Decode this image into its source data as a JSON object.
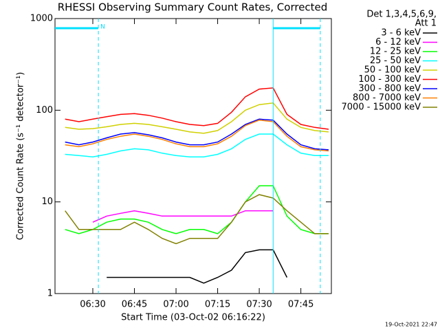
{
  "chart_data": {
    "type": "line",
    "title": "RHESSI Observing Summary Count Rates, Corrected",
    "x_label": "Start Time (03-Oct-02 06:16:22)",
    "y_label": "Corrected Count Rate (s⁻¹ detector⁻¹)",
    "legend_header": [
      "Det 1,3,4,5,6,9,",
      "Att 1"
    ],
    "timestamp": "19-Oct-2021 22:47",
    "annotation": {
      "text": "N",
      "x": "06:32"
    },
    "intervals": [
      [
        "06:16:22",
        "06:32"
      ],
      [
        "07:35",
        "07:52"
      ]
    ],
    "vlines": [
      "06:32",
      "07:35",
      "07:52"
    ],
    "log_y": true,
    "xlim": [
      "06:16:22",
      "07:56"
    ],
    "xticks": [
      "06:30",
      "06:45",
      "07:00",
      "07:15",
      "07:30",
      "07:45"
    ],
    "ylim": [
      1,
      1000
    ],
    "yticks": [
      1,
      10,
      100,
      1000
    ],
    "x": [
      "06:20",
      "06:25",
      "06:30",
      "06:35",
      "06:40",
      "06:45",
      "06:50",
      "06:55",
      "07:00",
      "07:05",
      "07:10",
      "07:15",
      "07:20",
      "07:25",
      "07:30",
      "07:35",
      "07:40",
      "07:45",
      "07:50",
      "07:55"
    ],
    "series": [
      {
        "name": "3 - 6 keV",
        "color": "#000000",
        "values": [
          null,
          null,
          null,
          1.5,
          1.5,
          1.5,
          1.5,
          1.5,
          1.5,
          1.5,
          1.3,
          1.5,
          1.8,
          2.8,
          3,
          3,
          1.5,
          null,
          null,
          null
        ]
      },
      {
        "name": "6 - 12 keV",
        "color": "#ff00ff",
        "values": [
          null,
          null,
          6,
          7,
          7.5,
          8,
          7.5,
          7,
          7,
          7,
          7,
          7,
          7,
          8,
          8,
          8,
          null,
          null,
          null,
          null
        ]
      },
      {
        "name": "12 - 25 keV",
        "color": "#00ff00",
        "values": [
          5,
          4.5,
          5,
          6,
          6.5,
          6.5,
          6,
          5,
          4.5,
          5,
          5,
          4.5,
          6,
          10,
          15,
          15,
          7,
          5,
          4.5,
          4.5
        ]
      },
      {
        "name": "25 - 50 keV",
        "color": "#00ffff",
        "values": [
          33,
          32,
          31,
          33,
          36,
          38,
          37,
          34,
          32,
          31,
          31,
          33,
          38,
          48,
          55,
          55,
          42,
          34,
          32,
          32
        ]
      },
      {
        "name": "50 - 100 keV",
        "color": "#d0d000",
        "values": [
          65,
          62,
          63,
          66,
          70,
          72,
          70,
          66,
          62,
          58,
          56,
          60,
          75,
          100,
          115,
          120,
          80,
          65,
          60,
          58
        ]
      },
      {
        "name": "100 - 300 keV",
        "color": "#ff0000",
        "values": [
          80,
          75,
          80,
          85,
          90,
          92,
          88,
          82,
          75,
          70,
          68,
          72,
          95,
          140,
          170,
          175,
          90,
          70,
          65,
          62
        ]
      },
      {
        "name": "300 - 800 keV",
        "color": "#0000ff",
        "values": [
          45,
          42,
          45,
          50,
          55,
          57,
          54,
          50,
          45,
          42,
          42,
          45,
          55,
          70,
          80,
          78,
          55,
          42,
          38,
          37
        ]
      },
      {
        "name": "800 - 7000 keV",
        "color": "#ff8000",
        "values": [
          42,
          40,
          43,
          48,
          52,
          55,
          52,
          48,
          43,
          40,
          40,
          43,
          52,
          68,
          78,
          75,
          52,
          40,
          37,
          36
        ]
      },
      {
        "name": "7000 - 15000 keV",
        "color": "#808000",
        "values": [
          8,
          5,
          5,
          5,
          5,
          6,
          5,
          4,
          3.5,
          4,
          4,
          4,
          6,
          10,
          12,
          11,
          8,
          6,
          4.5,
          4.5
        ]
      }
    ]
  }
}
